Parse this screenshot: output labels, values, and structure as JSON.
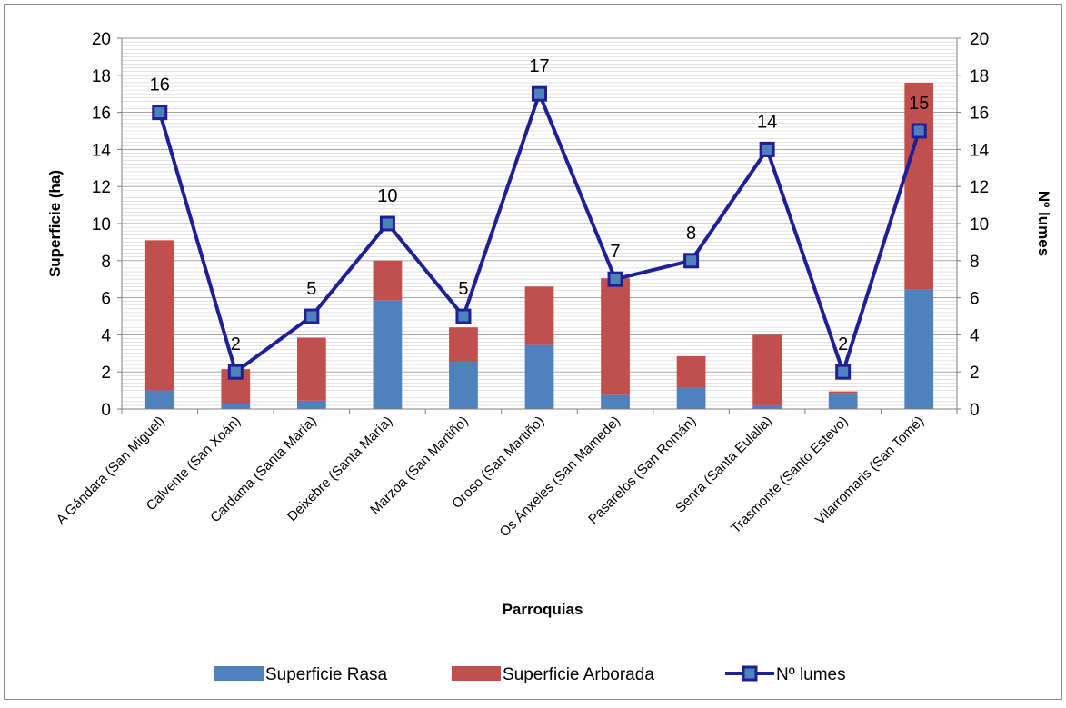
{
  "chart_data": {
    "type": "bar",
    "stacked": true,
    "categories": [
      "A Gándara (San Miguel)",
      "Calvente (San Xoán)",
      "Cardama (Santa María)",
      "Deixebre (Santa María)",
      "Marzoa (San Martiño)",
      "Oroso (San Martiño)",
      "Os Ánxeles (San Mamede)",
      "Pasarelos (San Román)",
      "Senra (Santa Eulalia)",
      "Trasmonte (Santo Estevo)",
      "Vilarromaris (San Tomé)"
    ],
    "series": [
      {
        "name": "Superficie Rasa",
        "kind": "bar",
        "axis": "left",
        "color": "#4F81BD",
        "values": [
          1.0,
          0.25,
          0.45,
          5.85,
          2.55,
          3.45,
          0.75,
          1.15,
          0.2,
          0.85,
          6.45
        ]
      },
      {
        "name": "Superficie Arborada",
        "kind": "bar",
        "axis": "left",
        "color": "#C0504D",
        "values": [
          8.1,
          1.9,
          3.4,
          2.15,
          1.85,
          3.15,
          6.3,
          1.7,
          3.8,
          0.1,
          11.15
        ]
      },
      {
        "name": "Nº lumes",
        "kind": "line",
        "axis": "right",
        "color": "#1F1F96",
        "marker": "square",
        "values": [
          16,
          2,
          5,
          10,
          5,
          17,
          7,
          8,
          14,
          2,
          15
        ],
        "labels": [
          "16",
          "2",
          "5",
          "10",
          "5",
          "17",
          "7",
          "8",
          "14",
          "2",
          "15"
        ]
      }
    ],
    "xlabel": "Parroquias",
    "ylabel": "Superficie (ha)",
    "y2label": "Nº lumes",
    "ylim": [
      0,
      20
    ],
    "y2lim": [
      0,
      20
    ],
    "yticks": [
      "0",
      "2",
      "4",
      "6",
      "8",
      "10",
      "12",
      "14",
      "16",
      "18",
      "20"
    ],
    "y2ticks": [
      "0",
      "2",
      "4",
      "6",
      "8",
      "10",
      "12",
      "14",
      "16",
      "18",
      "20"
    ],
    "grid": "horizontal minor",
    "legend": "bottom"
  }
}
